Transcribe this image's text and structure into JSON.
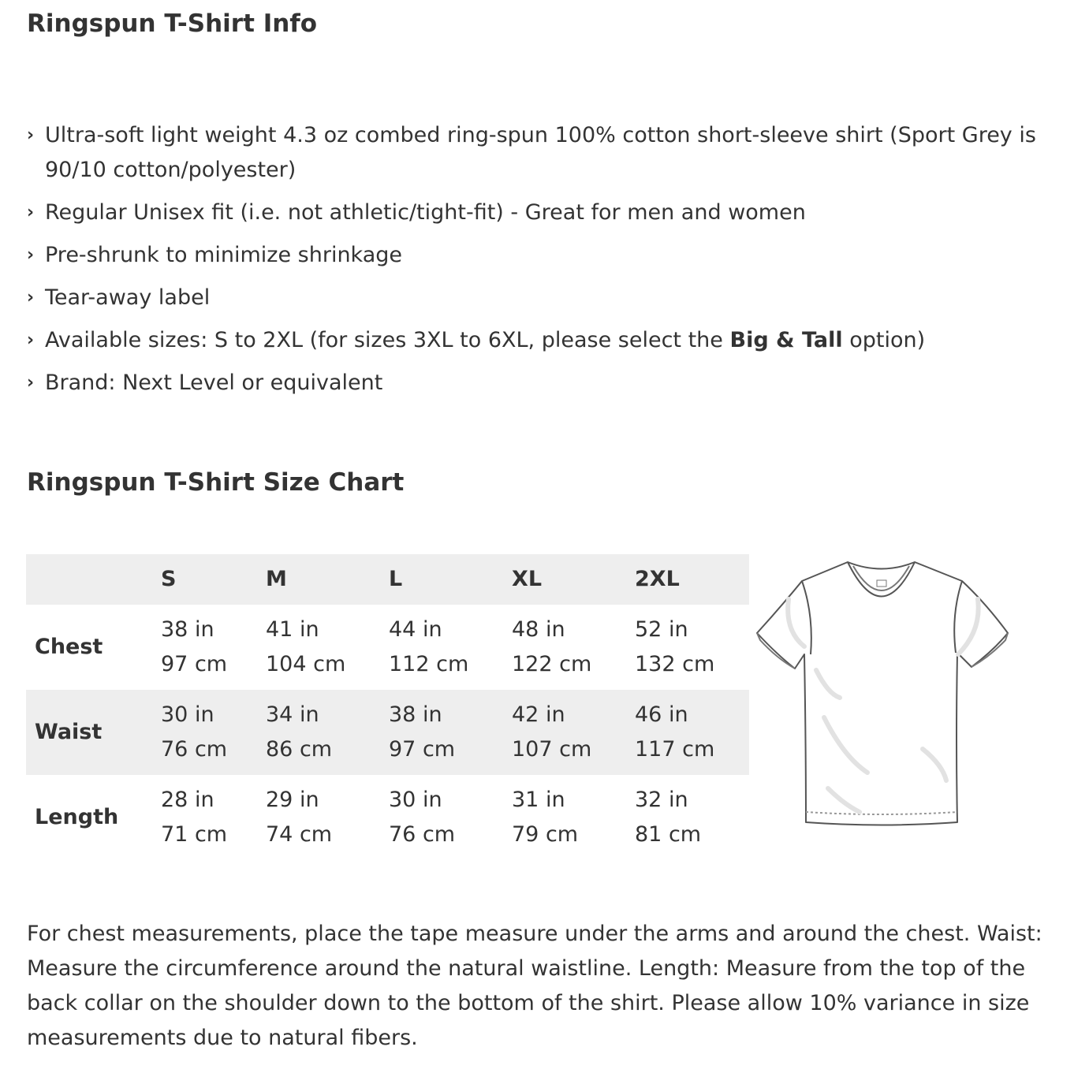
{
  "info": {
    "title": "Ringspun T-Shirt Info",
    "bullet_icon": "chevron-right",
    "items": [
      {
        "text": "Ultra-soft light weight 4.3 oz combed ring-spun 100% cotton short-sleeve shirt (Sport Grey is 90/10 cotton/polyester)"
      },
      {
        "text": "Regular Unisex fit (i.e. not athletic/tight-fit) - Great for men and women"
      },
      {
        "text": "Pre-shrunk to minimize shrinkage"
      },
      {
        "text": "Tear-away label"
      },
      {
        "before": "Available sizes: S to 2XL (for sizes 3XL to 6XL, please select the ",
        "bold": "Big & Tall",
        "after": " option)"
      },
      {
        "text": "Brand: Next Level or equivalent"
      }
    ]
  },
  "size_chart": {
    "title": "Ringspun T-Shirt Size Chart",
    "sizes": [
      "S",
      "M",
      "L",
      "XL",
      "2XL"
    ],
    "rows": [
      {
        "label": "Chest",
        "in": [
          "38 in",
          "41 in",
          "44 in",
          "48 in",
          "52 in"
        ],
        "cm": [
          "97 cm",
          "104 cm",
          "112 cm",
          "122 cm",
          "132 cm"
        ]
      },
      {
        "label": "Waist",
        "in": [
          "30 in",
          "34 in",
          "38 in",
          "42 in",
          "46 in"
        ],
        "cm": [
          "76 cm",
          "86 cm",
          "97 cm",
          "107 cm",
          "117 cm"
        ]
      },
      {
        "label": "Length",
        "in": [
          "28 in",
          "29 in",
          "30 in",
          "31 in",
          "32 in"
        ],
        "cm": [
          "71 cm",
          "74 cm",
          "76 cm",
          "79 cm",
          "81 cm"
        ]
      }
    ],
    "row_shade": "#eeeeee"
  },
  "note": "For chest measurements, place the tape measure under the arms and around the chest. Waist: Measure the circumference around the natural waistline. Length: Measure from the top of the back collar on the shoulder down to the bottom of the shirt. Please allow 10% variance in size measurements due to natural fibers."
}
